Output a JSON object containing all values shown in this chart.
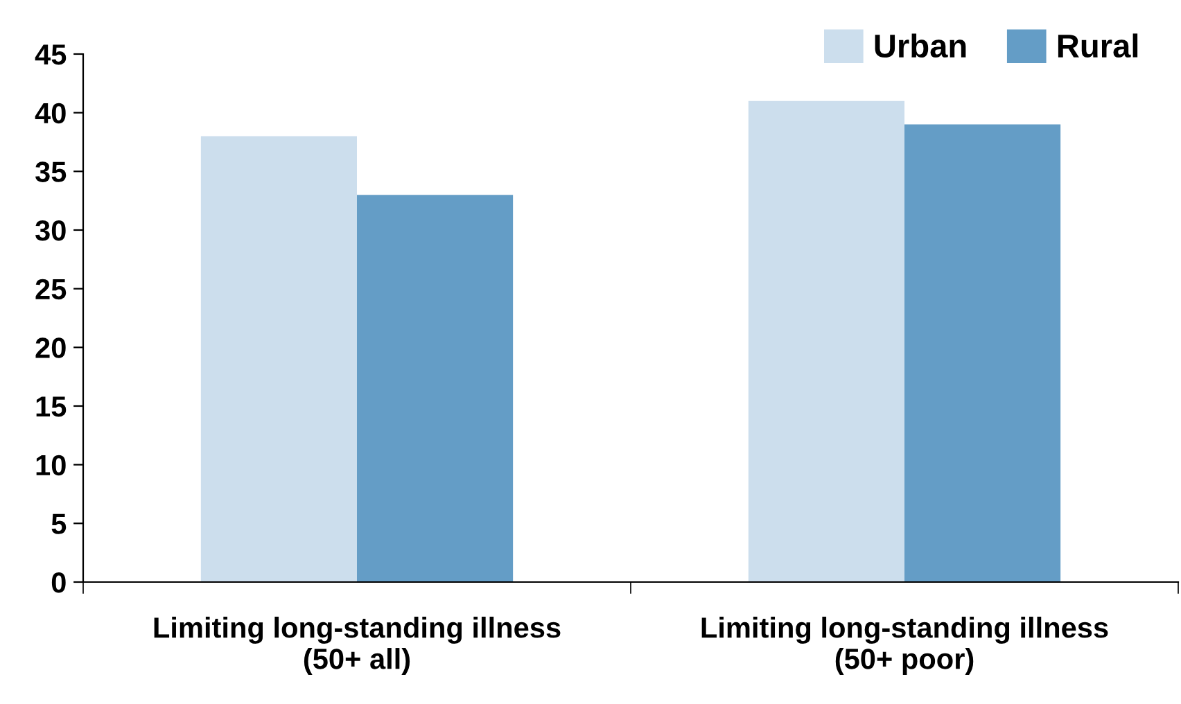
{
  "chart_data": {
    "type": "bar",
    "categories": [
      "Limiting long-standing illness (50+ all)",
      "Limiting long-standing illness (50+ poor)"
    ],
    "series": [
      {
        "name": "Urban",
        "color": "#ccdeed",
        "values": [
          38,
          41
        ]
      },
      {
        "name": "Rural",
        "color": "#649dc6",
        "values": [
          33,
          39
        ]
      }
    ],
    "ylim": [
      0,
      45
    ],
    "yticks": [
      0,
      5,
      10,
      15,
      20,
      25,
      30,
      35,
      40,
      45
    ],
    "grid": false,
    "legend": "top right"
  }
}
